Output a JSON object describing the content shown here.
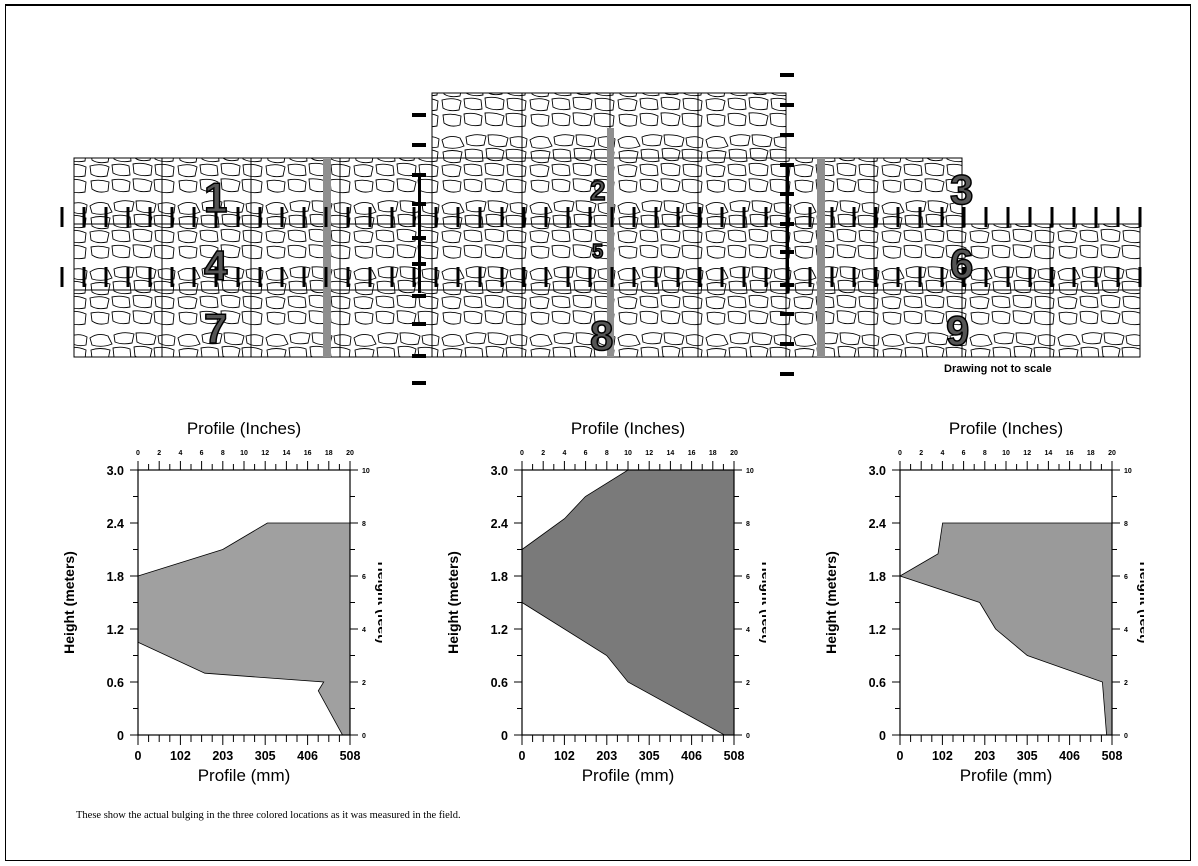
{
  "wall": {
    "section_labels": [
      "1",
      "2",
      "3",
      "4",
      "5",
      "6",
      "7",
      "8",
      "9"
    ],
    "colored_locations": 3,
    "measurement_color": "#8f8f8f",
    "note": "Drawing not to scale"
  },
  "chart_data": [
    {
      "type": "area",
      "title": "Profile (Inches)",
      "xlabel": "Profile (mm)",
      "ylabel": "Height (meters)",
      "ylabel_right": "Height (feet)",
      "x_ticks": [
        "0",
        "102",
        "203",
        "305",
        "406",
        "508"
      ],
      "x_top_ticks": [
        "0",
        "2",
        "4",
        "6",
        "8",
        "10",
        "12",
        "14",
        "16",
        "18",
        "20"
      ],
      "y_ticks": [
        "0",
        "0.6",
        "1.2",
        "1.8",
        "2.4",
        "3.0"
      ],
      "y_right_ticks": [
        "0",
        "2",
        "4",
        "6",
        "8",
        "10"
      ],
      "xlim": [
        0,
        508
      ],
      "ylim": [
        0,
        3.0
      ],
      "fill": "#a0a0a0",
      "boundary": [
        {
          "x": 0,
          "y": 1.8
        },
        {
          "x": 203,
          "y": 2.1
        },
        {
          "x": 310,
          "y": 2.4
        },
        {
          "x": 508,
          "y": 2.4
        },
        {
          "x": 508,
          "y": 0
        },
        {
          "x": 490,
          "y": 0
        },
        {
          "x": 432,
          "y": 0.5
        },
        {
          "x": 445,
          "y": 0.6
        },
        {
          "x": 160,
          "y": 0.7
        },
        {
          "x": 0,
          "y": 1.05
        }
      ]
    },
    {
      "type": "area",
      "title": "Profile (Inches)",
      "xlabel": "Profile (mm)",
      "ylabel": "Height (meters)",
      "ylabel_right": "Height (feet)",
      "x_ticks": [
        "0",
        "102",
        "203",
        "305",
        "406",
        "508"
      ],
      "x_top_ticks": [
        "0",
        "2",
        "4",
        "6",
        "8",
        "10",
        "12",
        "14",
        "16",
        "18",
        "20"
      ],
      "y_ticks": [
        "0",
        "0.6",
        "1.2",
        "1.8",
        "2.4",
        "3.0"
      ],
      "y_right_ticks": [
        "0",
        "2",
        "4",
        "6",
        "8",
        "10"
      ],
      "xlim": [
        0,
        508
      ],
      "ylim": [
        0,
        3.0
      ],
      "fill": "#7a7a7a",
      "boundary": [
        {
          "x": 0,
          "y": 2.1
        },
        {
          "x": 102,
          "y": 2.45
        },
        {
          "x": 152,
          "y": 2.7
        },
        {
          "x": 254,
          "y": 3.0
        },
        {
          "x": 508,
          "y": 3.0
        },
        {
          "x": 508,
          "y": 0
        },
        {
          "x": 485,
          "y": 0
        },
        {
          "x": 254,
          "y": 0.6
        },
        {
          "x": 203,
          "y": 0.9
        },
        {
          "x": 0,
          "y": 1.5
        }
      ]
    },
    {
      "type": "area",
      "title": "Profile (Inches)",
      "xlabel": "Profile (mm)",
      "ylabel": "Height (meters)",
      "ylabel_right": "Height (feet)",
      "x_ticks": [
        "0",
        "102",
        "203",
        "305",
        "406",
        "508"
      ],
      "x_top_ticks": [
        "0",
        "2",
        "4",
        "6",
        "8",
        "10",
        "12",
        "14",
        "16",
        "18",
        "20"
      ],
      "y_ticks": [
        "0",
        "0.6",
        "1.2",
        "1.8",
        "2.4",
        "3.0"
      ],
      "y_right_ticks": [
        "0",
        "2",
        "4",
        "6",
        "8",
        "10"
      ],
      "xlim": [
        0,
        508
      ],
      "ylim": [
        0,
        3.0
      ],
      "fill": "#9a9a9a",
      "boundary": [
        {
          "x": 0,
          "y": 1.8
        },
        {
          "x": 91,
          "y": 2.05
        },
        {
          "x": 102,
          "y": 2.4
        },
        {
          "x": 508,
          "y": 2.4
        },
        {
          "x": 508,
          "y": 0
        },
        {
          "x": 495,
          "y": 0
        },
        {
          "x": 485,
          "y": 0.6
        },
        {
          "x": 305,
          "y": 0.9
        },
        {
          "x": 229,
          "y": 1.2
        },
        {
          "x": 191,
          "y": 1.5
        },
        {
          "x": 0,
          "y": 1.8
        }
      ]
    }
  ],
  "caption": "These show the actual bulging in the three colored locations as it was measured in the field."
}
